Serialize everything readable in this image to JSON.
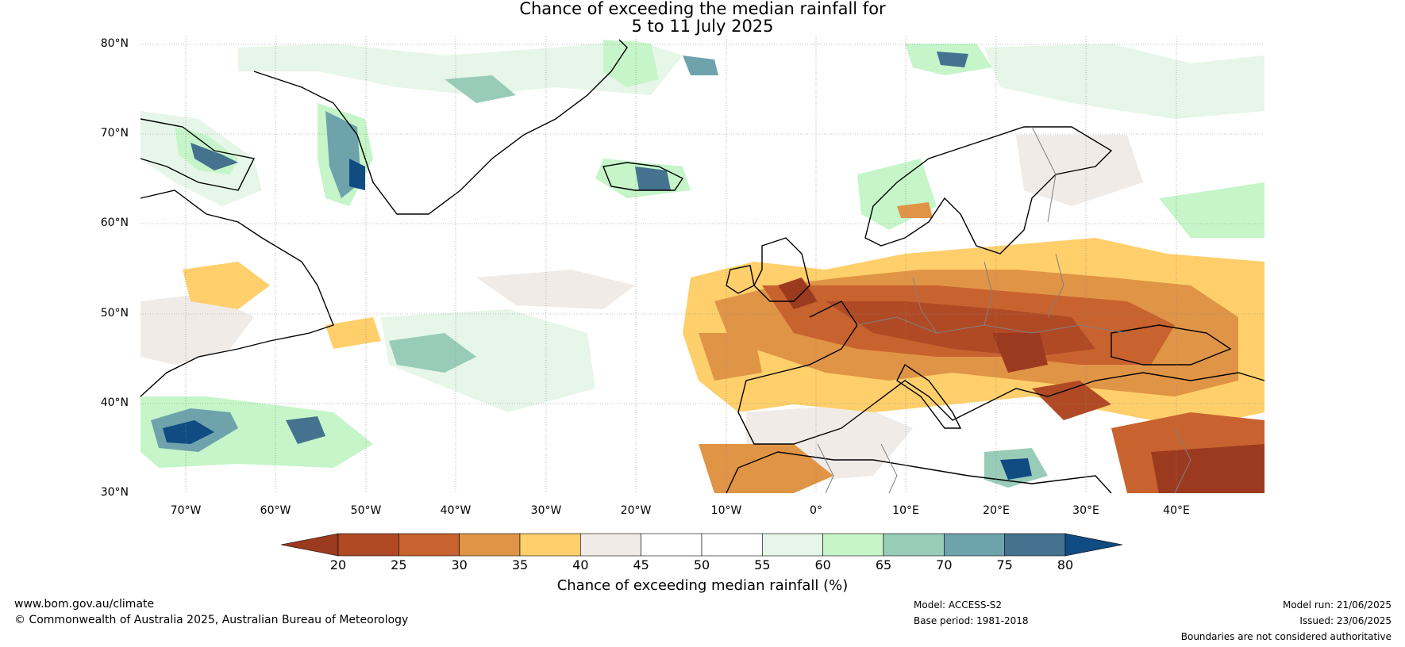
{
  "title_line1": "Chance of exceeding the median rainfall for",
  "title_line2": "5 to 11 July 2025",
  "latitudes": [
    "80°N",
    "70°N",
    "60°N",
    "50°N",
    "40°N",
    "30°N"
  ],
  "longitudes": [
    "70°W",
    "60°W",
    "50°W",
    "40°W",
    "30°W",
    "20°W",
    "10°W",
    "0°",
    "10°E",
    "20°E",
    "30°E",
    "40°E"
  ],
  "colorbar": {
    "ticks": [
      "20",
      "25",
      "30",
      "35",
      "40",
      "45",
      "50",
      "55",
      "60",
      "65",
      "70",
      "75",
      "80"
    ],
    "colors": [
      "#9c3a1f",
      "#b04a25",
      "#c8622e",
      "#e09446",
      "#fecf6a",
      "#f0ebe7",
      "#ffffff",
      "#ffffff",
      "#e6f6e8",
      "#c5f5c8",
      "#98ccb9",
      "#6ea3ac",
      "#45728f",
      "#104b82"
    ],
    "label": "Chance of exceeding median rainfall (%)"
  },
  "footer": {
    "website": "www.bom.gov.au/climate",
    "copyright": "© Commonwealth of Australia 2025, Australian Bureau of Meteorology",
    "model": "Model: ACCESS-S2",
    "base_period": "Base period: 1981-2018",
    "model_run": "Model run: 21/06/2025",
    "issued": "Issued: 23/06/2025",
    "disclaimer": "Boundaries are not considered authoritative"
  }
}
